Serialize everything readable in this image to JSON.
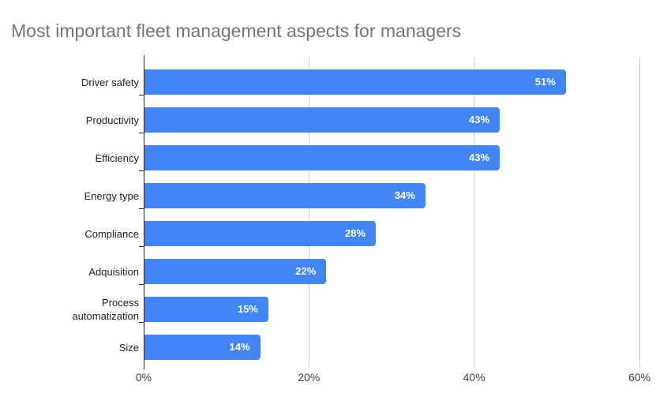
{
  "chart_data": {
    "type": "bar",
    "orientation": "horizontal",
    "title": "Most important fleet management aspects for managers",
    "categories": [
      "Driver safety",
      "Productivity",
      "Efficiency",
      "Energy type",
      "Compliance",
      "Adquisition",
      "Process automatization",
      "Size"
    ],
    "values": [
      51,
      43,
      43,
      34,
      28,
      22,
      15,
      14
    ],
    "value_labels": [
      "51%",
      "43%",
      "43%",
      "34%",
      "28%",
      "22%",
      "15%",
      "14%"
    ],
    "x_ticks": [
      {
        "value": 0,
        "label": "0%"
      },
      {
        "value": 20,
        "label": "20%"
      },
      {
        "value": 40,
        "label": "40%"
      },
      {
        "value": 60,
        "label": "60%"
      }
    ],
    "xlim": [
      0,
      60
    ],
    "grid": true,
    "legend": "none",
    "colors": {
      "bar": "#4285f4",
      "bar_value_label": "#ffffff",
      "title": "#757575",
      "gridline": "#cccccc",
      "axis_line": "#212121",
      "category_label": "#212121",
      "x_tick_label": "#424242",
      "background": "#ffffff"
    }
  }
}
